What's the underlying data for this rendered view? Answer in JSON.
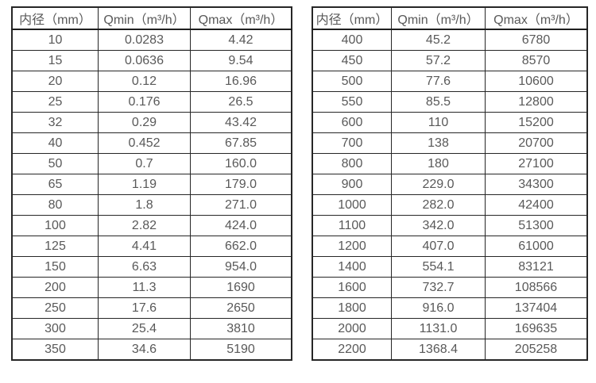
{
  "colors": {
    "background": "#ffffff",
    "border": "#262626",
    "text": "#595959"
  },
  "chart_data": [
    {
      "type": "table",
      "name": "flow-rate-table-small-diameters",
      "columns": [
        "内径（mm）",
        "Qmin（m³/h）",
        "Qmax（m³/h）"
      ],
      "rows": [
        [
          "10",
          "0.0283",
          "4.42"
        ],
        [
          "15",
          "0.0636",
          "9.54"
        ],
        [
          "20",
          "0.12",
          "16.96"
        ],
        [
          "25",
          "0.176",
          "26.5"
        ],
        [
          "32",
          "0.29",
          "43.42"
        ],
        [
          "40",
          "0.452",
          "67.85"
        ],
        [
          "50",
          "0.7",
          "160.0"
        ],
        [
          "65",
          "1.19",
          "179.0"
        ],
        [
          "80",
          "1.8",
          "271.0"
        ],
        [
          "100",
          "2.82",
          "424.0"
        ],
        [
          "125",
          "4.41",
          "662.0"
        ],
        [
          "150",
          "6.63",
          "954.0"
        ],
        [
          "200",
          "11.3",
          "1690"
        ],
        [
          "250",
          "17.6",
          "2650"
        ],
        [
          "300",
          "25.4",
          "3810"
        ],
        [
          "350",
          "34.6",
          "5190"
        ]
      ]
    },
    {
      "type": "table",
      "name": "flow-rate-table-large-diameters",
      "columns": [
        "内径（mm）",
        "Qmin（m³/h）",
        "Qmax（m³/h）"
      ],
      "rows": [
        [
          "400",
          "45.2",
          "6780"
        ],
        [
          "450",
          "57.2",
          "8570"
        ],
        [
          "500",
          "77.6",
          "10600"
        ],
        [
          "550",
          "85.5",
          "12800"
        ],
        [
          "600",
          "110",
          "15200"
        ],
        [
          "700",
          "138",
          "20700"
        ],
        [
          "800",
          "180",
          "27100"
        ],
        [
          "900",
          "229.0",
          "34300"
        ],
        [
          "1000",
          "282.0",
          "42400"
        ],
        [
          "1100",
          "342.0",
          "51300"
        ],
        [
          "1200",
          "407.0",
          "61000"
        ],
        [
          "1400",
          "554.1",
          "83121"
        ],
        [
          "1600",
          "732.7",
          "108566"
        ],
        [
          "1800",
          "916.0",
          "137404"
        ],
        [
          "2000",
          "1131.0",
          "169635"
        ],
        [
          "2200",
          "1368.4",
          "205258"
        ]
      ]
    }
  ]
}
